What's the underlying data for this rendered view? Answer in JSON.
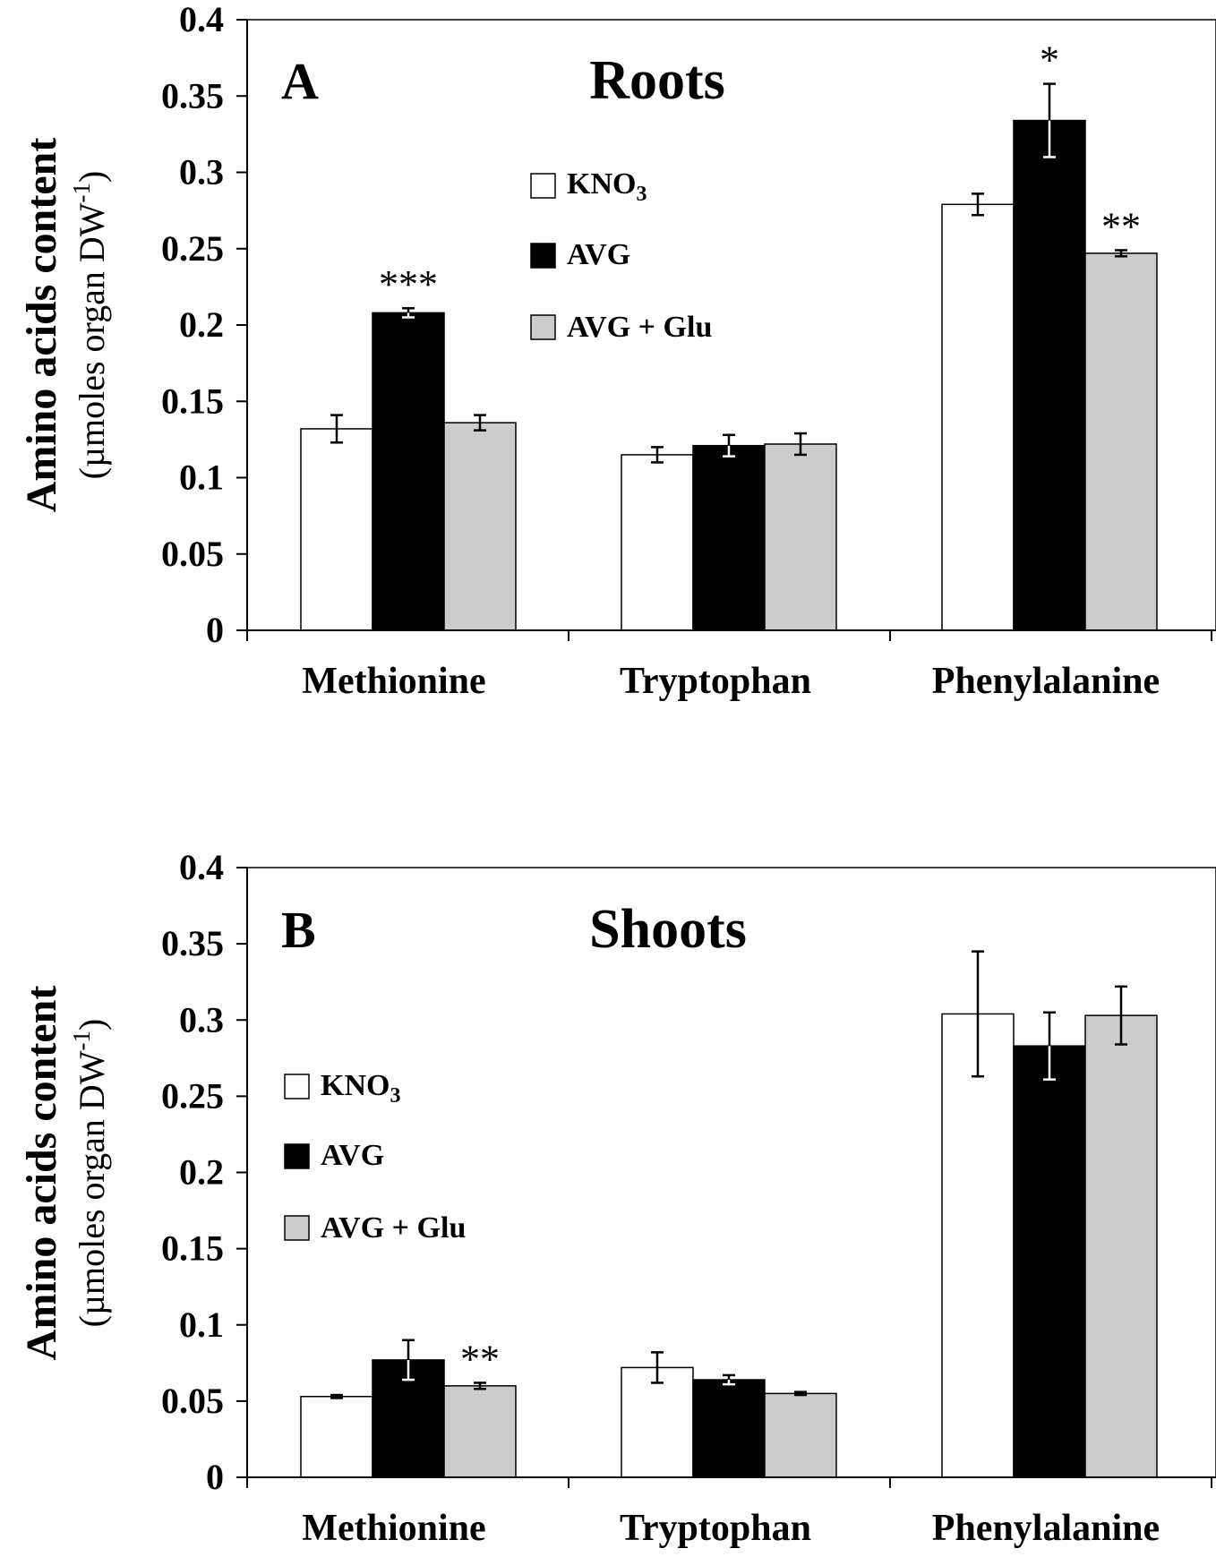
{
  "chart_data": [
    {
      "type": "bar",
      "panel_letter": "A",
      "title": "Roots",
      "categories": [
        "Methionine",
        "Tryptophan",
        "Phenylalanine"
      ],
      "series": [
        {
          "name": "KNO3",
          "color": "#ffffff",
          "values": [
            0.132,
            0.115,
            0.279
          ],
          "errors": [
            0.009,
            0.005,
            0.007
          ],
          "sig": [
            "",
            "",
            ""
          ]
        },
        {
          "name": "AVG",
          "color": "#000000",
          "values": [
            0.208,
            0.121,
            0.334
          ],
          "errors": [
            0.003,
            0.007,
            0.024
          ],
          "sig": [
            "***",
            "",
            "*"
          ]
        },
        {
          "name": "AVG + Glu",
          "color": "#cccccc",
          "values": [
            0.136,
            0.122,
            0.247
          ],
          "errors": [
            0.005,
            0.007,
            0.002
          ],
          "sig": [
            "",
            "",
            "**"
          ]
        }
      ],
      "legend_labels": [
        "KNO",
        "AVG",
        "AVG + Glu"
      ],
      "legend_subscripts": [
        "3",
        "",
        ""
      ],
      "ylabel_line1": "Amino acids content",
      "ylabel_line2_main": "(µmoles organ DW",
      "ylabel_line2_sup": "-1",
      "ylabel_line2_end": ")",
      "ylim": [
        0,
        0.4
      ],
      "yticks": [
        0,
        0.05,
        0.1,
        0.15,
        0.2,
        0.25,
        0.3,
        0.35,
        0.4
      ],
      "ytick_labels": [
        "0",
        "0.05",
        "0.1",
        "0.15",
        "0.2",
        "0.25",
        "0.3",
        "0.35",
        "0.4"
      ],
      "legend_position": "top-center"
    },
    {
      "type": "bar",
      "panel_letter": "B",
      "title": "Shoots",
      "categories": [
        "Methionine",
        "Tryptophan",
        "Phenylalanine"
      ],
      "series": [
        {
          "name": "KNO3",
          "color": "#ffffff",
          "values": [
            0.053,
            0.072,
            0.304
          ],
          "errors": [
            0.001,
            0.01,
            0.041
          ],
          "sig": [
            "",
            "",
            ""
          ]
        },
        {
          "name": "AVG",
          "color": "#000000",
          "values": [
            0.077,
            0.064,
            0.283
          ],
          "errors": [
            0.013,
            0.003,
            0.022
          ],
          "sig": [
            "",
            "",
            ""
          ]
        },
        {
          "name": "AVG + Glu",
          "color": "#cccccc",
          "values": [
            0.06,
            0.055,
            0.303
          ],
          "errors": [
            0.002,
            0.001,
            0.019
          ],
          "sig": [
            "**",
            "",
            ""
          ]
        }
      ],
      "legend_labels": [
        "KNO",
        "AVG",
        "AVG + Glu"
      ],
      "legend_subscripts": [
        "3",
        "",
        ""
      ],
      "ylabel_line1": "Amino acids content",
      "ylabel_line2_main": "(µmoles organ DW",
      "ylabel_line2_sup": "-1",
      "ylabel_line2_end": ")",
      "ylim": [
        0,
        0.4
      ],
      "yticks": [
        0,
        0.05,
        0.1,
        0.15,
        0.2,
        0.25,
        0.3,
        0.35,
        0.4
      ],
      "ytick_labels": [
        "0",
        "0.05",
        "0.1",
        "0.15",
        "0.2",
        "0.25",
        "0.3",
        "0.35",
        "0.4"
      ],
      "legend_position": "middle-left"
    }
  ]
}
